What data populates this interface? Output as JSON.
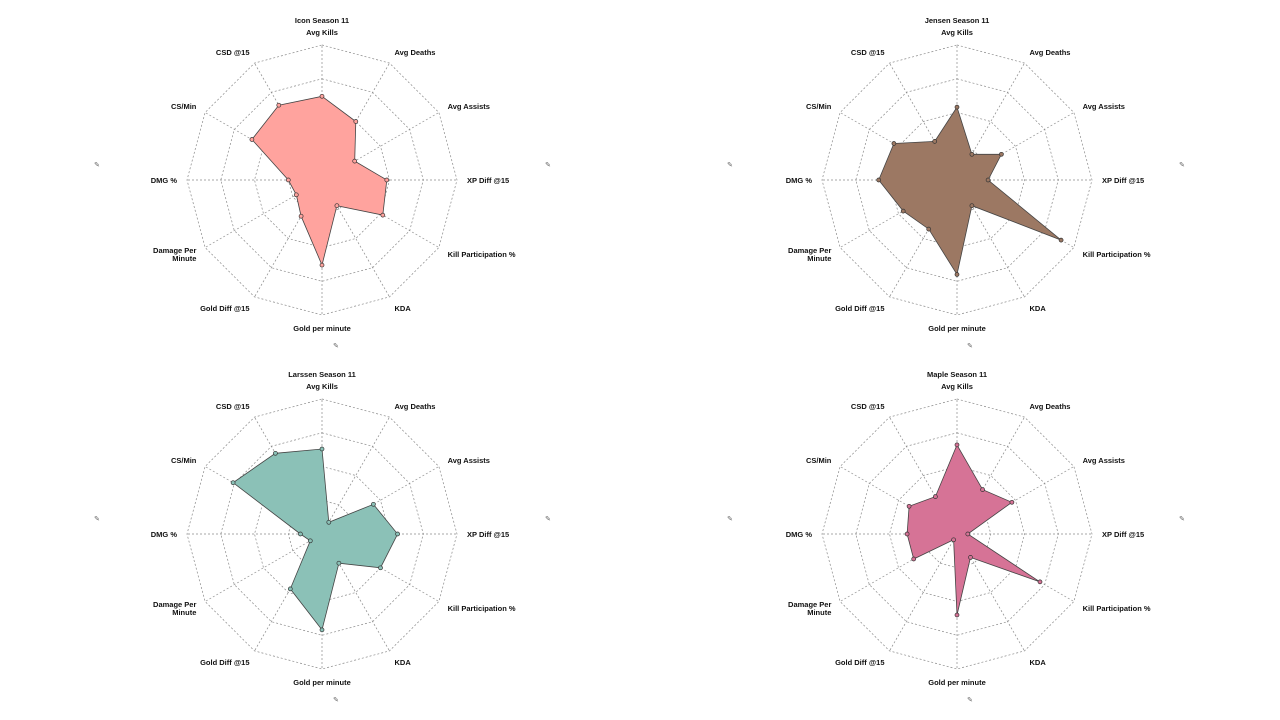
{
  "axes": [
    "Avg Kills",
    "Avg Deaths",
    "Avg Assists",
    "XP Diff @15",
    "Kill Participation %",
    "KDA",
    "Gold per minute",
    "Gold Diff @15",
    "Damage Per Minute",
    "DMG %",
    "CS/Min",
    "CSD @15"
  ],
  "pin_icon": "pushpin-icon",
  "chart_data": [
    {
      "type": "radar",
      "title": "Icon Season 11",
      "color": "#FFA39E",
      "rmax": 1,
      "rings": 4,
      "grid": true,
      "values": [
        0.62,
        0.5,
        0.28,
        0.48,
        0.52,
        0.22,
        0.63,
        0.31,
        0.22,
        0.25,
        0.6,
        0.64
      ]
    },
    {
      "type": "radar",
      "title": "Jensen Season 11",
      "color": "#9C7863",
      "rmax": 1,
      "rings": 4,
      "grid": true,
      "values": [
        0.54,
        0.22,
        0.38,
        0.23,
        0.89,
        0.22,
        0.7,
        0.42,
        0.46,
        0.58,
        0.54,
        0.33
      ]
    },
    {
      "type": "radar",
      "title": "Larssen Season 11",
      "color": "#8BC1B7",
      "rmax": 1,
      "rings": 4,
      "grid": true,
      "values": [
        0.63,
        0.1,
        0.44,
        0.56,
        0.5,
        0.25,
        0.71,
        0.47,
        0.1,
        0.16,
        0.76,
        0.69
      ]
    },
    {
      "type": "radar",
      "title": "Maple Season 11",
      "color": "#D67396",
      "rmax": 1,
      "rings": 4,
      "grid": true,
      "values": [
        0.66,
        0.38,
        0.47,
        0.08,
        0.71,
        0.2,
        0.6,
        0.05,
        0.37,
        0.37,
        0.41,
        0.32
      ]
    }
  ]
}
